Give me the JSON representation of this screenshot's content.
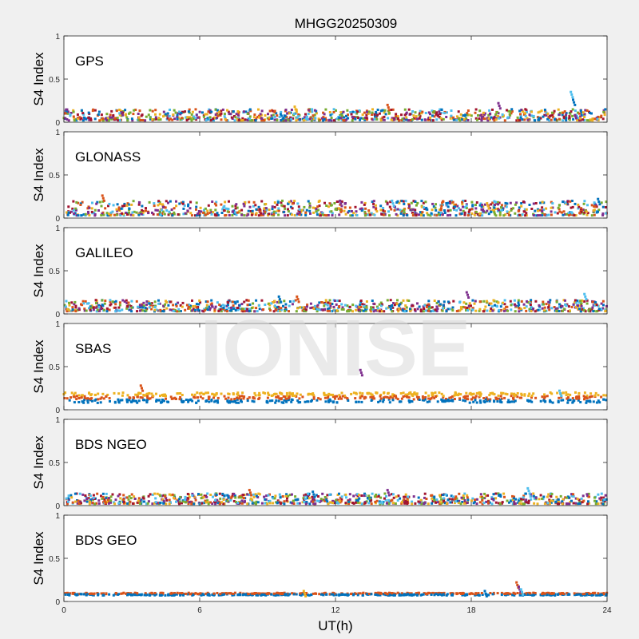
{
  "title": "MHGG20250309",
  "watermark": "IONISE",
  "xlabel": "UT(h)",
  "colors": {
    "background": "#f0f0f0",
    "axes_bg": "#ffffff",
    "axis": "#262626",
    "watermark": "#d9d9d9",
    "series": [
      "#0072BD",
      "#D95319",
      "#EDB120",
      "#7E2F8E",
      "#77AC30",
      "#4DBEEE",
      "#A2142F"
    ]
  },
  "chart_data": [
    {
      "type": "scatter",
      "label": "GPS",
      "ylabel": "S4 Index",
      "xlim": [
        0,
        24
      ],
      "ylim": [
        0,
        1
      ],
      "xticks": [
        0,
        6,
        12,
        18,
        24
      ],
      "yticks": [
        0,
        0.5,
        1
      ],
      "ytick_labels": [
        "0",
        "0.5",
        "1"
      ],
      "series_count": 7,
      "baseline_s4": [
        0.02,
        0.15
      ],
      "spikes": [
        [
          14.3,
          0.2
        ],
        [
          19.2,
          0.22
        ],
        [
          22.4,
          0.35
        ],
        [
          22.5,
          0.26
        ],
        [
          10.2,
          0.18
        ]
      ]
    },
    {
      "type": "scatter",
      "label": "GLONASS",
      "ylabel": "S4 Index",
      "xlim": [
        0,
        24
      ],
      "ylim": [
        0,
        1
      ],
      "xticks": [
        0,
        6,
        12,
        18,
        24
      ],
      "yticks": [
        0,
        0.5,
        1
      ],
      "ytick_labels": [
        "0",
        "0.5",
        "1"
      ],
      "series_count": 7,
      "baseline_s4": [
        0.03,
        0.2
      ],
      "spikes": [
        [
          1.7,
          0.26
        ],
        [
          12.2,
          0.2
        ],
        [
          14.5,
          0.2
        ],
        [
          23.6,
          0.22
        ],
        [
          18.7,
          0.17
        ]
      ]
    },
    {
      "type": "scatter",
      "label": "GALILEO",
      "ylabel": "S4 Index",
      "xlim": [
        0,
        24
      ],
      "ylim": [
        0,
        1
      ],
      "xticks": [
        0,
        6,
        12,
        18,
        24
      ],
      "yticks": [
        0,
        0.5,
        1
      ],
      "ytick_labels": [
        "0",
        "0.5",
        "1"
      ],
      "series_count": 7,
      "baseline_s4": [
        0.03,
        0.16
      ],
      "spikes": [
        [
          10.3,
          0.2
        ],
        [
          17.8,
          0.25
        ],
        [
          23.0,
          0.23
        ],
        [
          9.5,
          0.2
        ]
      ]
    },
    {
      "type": "scatter",
      "label": "SBAS",
      "ylabel": "S4 Index",
      "xlim": [
        0,
        24
      ],
      "ylim": [
        0,
        1
      ],
      "xticks": [
        0,
        6,
        12,
        18,
        24
      ],
      "yticks": [
        0,
        0.5,
        1
      ],
      "ytick_labels": [
        "0",
        "0.5",
        "1"
      ],
      "series_count": 3,
      "baseline_s4": [
        0.08,
        0.2
      ],
      "spikes": [
        [
          3.4,
          0.28
        ],
        [
          13.1,
          0.46
        ],
        [
          21.9,
          0.22
        ]
      ]
    },
    {
      "type": "scatter",
      "label": "BDS NGEO",
      "ylabel": "S4 Index",
      "xlim": [
        0,
        24
      ],
      "ylim": [
        0,
        1
      ],
      "xticks": [
        0,
        6,
        12,
        18,
        24
      ],
      "yticks": [
        0,
        0.5,
        1
      ],
      "ytick_labels": [
        "0",
        "0.5",
        "1"
      ],
      "series_count": 7,
      "baseline_s4": [
        0.02,
        0.14
      ],
      "spikes": [
        [
          8.2,
          0.18
        ],
        [
          14.3,
          0.18
        ],
        [
          20.5,
          0.2
        ],
        [
          11.0,
          0.16
        ]
      ]
    },
    {
      "type": "scatter",
      "label": "BDS GEO",
      "ylabel": "S4 Index",
      "xlim": [
        0,
        24
      ],
      "ylim": [
        0,
        1
      ],
      "xticks": [
        0,
        6,
        12,
        18,
        24
      ],
      "yticks": [
        0,
        0.5,
        1
      ],
      "ytick_labels": [
        "0",
        "0.5",
        "1"
      ],
      "series_count": 2,
      "baseline_s4": [
        0.07,
        0.1
      ],
      "spikes": [
        [
          20.0,
          0.22
        ],
        [
          20.1,
          0.17
        ],
        [
          20.2,
          0.14
        ],
        [
          18.6,
          0.12
        ],
        [
          10.6,
          0.12
        ]
      ]
    }
  ]
}
